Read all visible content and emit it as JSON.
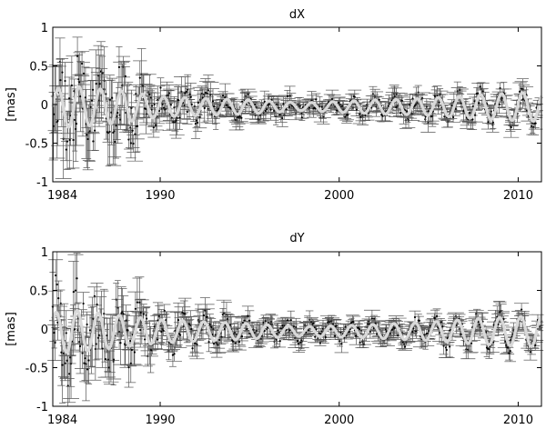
{
  "chart_data": [
    {
      "type": "scatter",
      "title": "dX",
      "ylabel": "[mas]",
      "xlabel": "",
      "xlim": [
        1984,
        2011.3
      ],
      "ylim": [
        -1,
        1
      ],
      "x_ticks": [
        1984,
        1990,
        2000,
        2010
      ],
      "y_ticks": [
        -1,
        -0.5,
        0,
        0.5,
        1
      ],
      "y_tick_labels": [
        "-1",
        "-0.5",
        "0",
        "0.5",
        "1"
      ],
      "grid": false,
      "colors": {
        "points": "#000000",
        "errorbars": "#555555",
        "fit": "#d9d9d9"
      },
      "series": [
        {
          "kind": "observations_with_error_bars",
          "sampling": {
            "x_start": 1984,
            "x_end": 2011.2,
            "n_points": 520
          },
          "envelope": [
            [
              1984,
              0.45,
              0.45
            ],
            [
              1988,
              0.35,
              0.32
            ],
            [
              1990,
              0.22,
              0.18
            ],
            [
              1995,
              0.12,
              0.1
            ],
            [
              2000,
              0.1,
              0.08
            ],
            [
              2005,
              0.12,
              0.1
            ],
            [
              2011,
              0.12,
              0.1
            ]
          ]
        },
        {
          "kind": "fit_curve",
          "period_years": 1.18,
          "mean": -0.03,
          "amplitude_profile": [
            [
              1984,
              0.22
            ],
            [
              1985,
              0.27
            ],
            [
              1988,
              0.2
            ],
            [
              1990,
              0.13
            ],
            [
              1995,
              0.09
            ],
            [
              1998,
              0.05
            ],
            [
              2001,
              0.08
            ],
            [
              2005,
              0.11
            ],
            [
              2008,
              0.16
            ],
            [
              2011,
              0.19
            ]
          ]
        }
      ]
    },
    {
      "type": "scatter",
      "title": "dY",
      "ylabel": "[mas]",
      "xlabel": "",
      "xlim": [
        1984,
        2011.3
      ],
      "ylim": [
        -1,
        1
      ],
      "x_ticks": [
        1984,
        1990,
        2000,
        2010
      ],
      "y_ticks": [
        -1,
        -0.5,
        0,
        0.5,
        1
      ],
      "y_tick_labels": [
        "-1",
        "-0.5",
        "0",
        "0.5",
        "1"
      ],
      "grid": false,
      "colors": {
        "points": "#000000",
        "errorbars": "#555555",
        "fit": "#d9d9d9"
      },
      "series": [
        {
          "kind": "observations_with_error_bars",
          "sampling": {
            "x_start": 1984,
            "x_end": 2011.2,
            "n_points": 520
          },
          "envelope": [
            [
              1984,
              0.45,
              0.45
            ],
            [
              1988,
              0.35,
              0.32
            ],
            [
              1990,
              0.22,
              0.18
            ],
            [
              1995,
              0.12,
              0.1
            ],
            [
              2000,
              0.1,
              0.08
            ],
            [
              2005,
              0.12,
              0.1
            ],
            [
              2011,
              0.12,
              0.1
            ]
          ]
        },
        {
          "kind": "fit_curve",
          "period_years": 1.18,
          "mean": -0.03,
          "amplitude_profile": [
            [
              1984,
              0.24
            ],
            [
              1985,
              0.28
            ],
            [
              1988,
              0.2
            ],
            [
              1990,
              0.15
            ],
            [
              1995,
              0.1
            ],
            [
              1998,
              0.06
            ],
            [
              2001,
              0.08
            ],
            [
              2005,
              0.12
            ],
            [
              2008,
              0.17
            ],
            [
              2011,
              0.2
            ]
          ]
        }
      ]
    }
  ]
}
